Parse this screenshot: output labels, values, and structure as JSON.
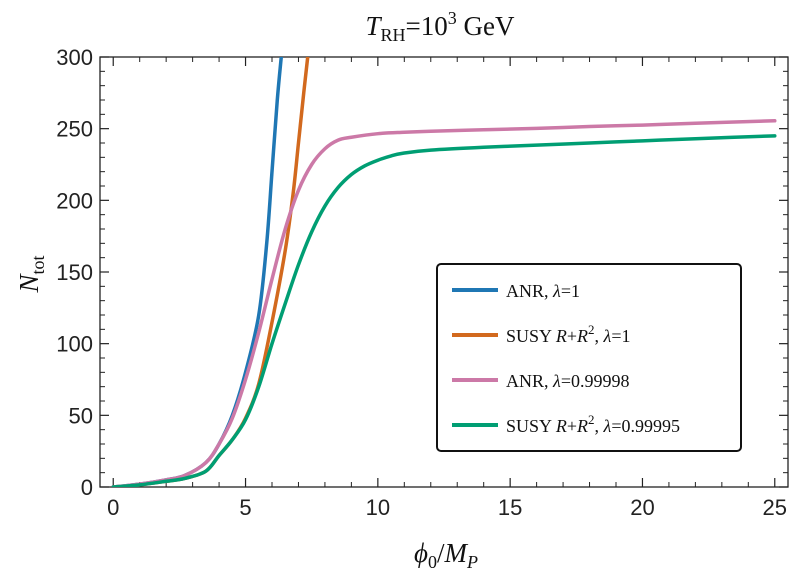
{
  "chart_data": {
    "type": "line",
    "title": {
      "italic": "T",
      "subscript": "RH",
      "base": "=10",
      "superscript": "3",
      "unit": " GeV"
    },
    "xlabel": {
      "italic": "ϕ",
      "sub1": "0",
      "slash": "/",
      "italic2": "M",
      "sub2": "P"
    },
    "ylabel": {
      "italic": "N",
      "subscript": "tot"
    },
    "xlim": [
      -0.5,
      25.5
    ],
    "ylim": [
      0,
      300
    ],
    "xticks": [
      0,
      5,
      10,
      15,
      20,
      25
    ],
    "yticks": [
      0,
      50,
      100,
      150,
      200,
      250,
      300
    ],
    "grid": false,
    "legend_position": "center-right",
    "series": [
      {
        "name": "ANR, λ=1",
        "legend": {
          "pre": "ANR, ",
          "italic": "λ",
          "post": "=1"
        },
        "color": "#1f77b4",
        "x": [
          0,
          1,
          2,
          2.7,
          3.5,
          4,
          4.5,
          5,
          5.5,
          5.8,
          6.0,
          6.2,
          6.35
        ],
        "y": [
          0,
          2,
          5,
          8,
          17,
          30,
          50,
          80,
          120,
          170,
          220,
          270,
          300
        ]
      },
      {
        "name": "SUSY R+R2, λ=1",
        "legend": {
          "pre": "SUSY ",
          "italic": "R",
          "mid": "+",
          "italic2": "R",
          "sup": "2",
          "post_pre": ", ",
          "italic3": "λ",
          "post": "=1"
        },
        "color": "#d2691e",
        "x": [
          0,
          1,
          2,
          2.7,
          3.5,
          4,
          4.5,
          5,
          5.5,
          6,
          6.5,
          6.8,
          7.0,
          7.2,
          7.35
        ],
        "y": [
          0,
          1.5,
          4,
          6,
          11,
          22,
          33,
          48,
          72,
          115,
          165,
          205,
          240,
          275,
          300
        ]
      },
      {
        "name": "ANR, λ=0.99998",
        "legend": {
          "pre": "ANR, ",
          "italic": "λ",
          "post": "=0.99998"
        },
        "color": "#cc79a7",
        "x": [
          0,
          1,
          2,
          2.7,
          3.5,
          4,
          4.5,
          5,
          5.5,
          6,
          6.5,
          7,
          7.5,
          8,
          8.5,
          9,
          10,
          11,
          12,
          14,
          16,
          18,
          20,
          22,
          25
        ],
        "y": [
          0,
          2,
          5,
          8,
          17,
          30,
          48,
          75,
          108,
          145,
          180,
          207,
          225,
          236,
          242,
          244,
          246.5,
          247.5,
          248.2,
          249.2,
          250.2,
          251.5,
          252.5,
          253.8,
          255.5
        ]
      },
      {
        "name": "SUSY R+R2, λ=0.99995",
        "legend": {
          "pre": "SUSY ",
          "italic": "R",
          "mid": "+",
          "italic2": "R",
          "sup": "2",
          "post_pre": ", ",
          "italic3": "λ",
          "post": "=0.99995"
        },
        "color": "#009e73",
        "x": [
          0,
          1,
          2,
          2.7,
          3.5,
          4,
          4.5,
          5,
          5.5,
          6,
          6.5,
          7,
          7.5,
          8,
          8.5,
          9,
          9.5,
          10,
          10.5,
          11,
          12,
          14,
          16,
          18,
          20,
          22,
          25
        ],
        "y": [
          0,
          1.5,
          4,
          6,
          11,
          22,
          33,
          47,
          70,
          100,
          128,
          155,
          178,
          196,
          209,
          218,
          224,
          228,
          231,
          233,
          235,
          237,
          238.5,
          240,
          241.5,
          243,
          245
        ]
      }
    ]
  }
}
